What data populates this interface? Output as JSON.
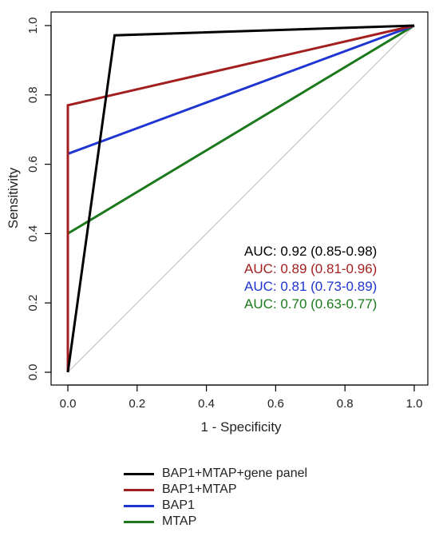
{
  "chart_data": {
    "type": "line",
    "title": "",
    "xlabel": "1 - Specificity",
    "ylabel": "Sensitivity",
    "xlim": [
      0.0,
      1.0
    ],
    "ylim": [
      0.0,
      1.0
    ],
    "x_ticks": [
      "0.0",
      "0.2",
      "0.4",
      "0.6",
      "0.8",
      "1.0"
    ],
    "y_ticks": [
      "0.0",
      "0.2",
      "0.4",
      "0.6",
      "0.8",
      "1.0"
    ],
    "grid": false,
    "legend_position": "bottom",
    "reference_line": {
      "x": [
        0,
        1
      ],
      "y": [
        0,
        1
      ],
      "color": "#bdbdbd"
    },
    "series": [
      {
        "name": "BAP1+MTAP+gene panel",
        "color": "#000000",
        "x": [
          0,
          0.135,
          1.0
        ],
        "y": [
          0,
          0.972,
          1.0
        ],
        "auc": "AUC: 0.92 (0.85-0.98)"
      },
      {
        "name": "BAP1+MTAP",
        "color": "#a31f1f",
        "x": [
          0,
          0,
          1.0
        ],
        "y": [
          0,
          0.77,
          1.0
        ],
        "auc": "AUC: 0.89 (0.81-0.96)"
      },
      {
        "name": "BAP1",
        "color": "#1f35d1",
        "x": [
          0,
          0,
          1.0
        ],
        "y": [
          0,
          0.63,
          1.0
        ],
        "auc": "AUC: 0.81 (0.73-0.89)"
      },
      {
        "name": "MTAP",
        "color": "#1c7a1c",
        "x": [
          0,
          0,
          1.0
        ],
        "y": [
          0,
          0.4,
          1.0
        ],
        "auc": "AUC: 0.70 (0.63-0.77)"
      }
    ]
  }
}
